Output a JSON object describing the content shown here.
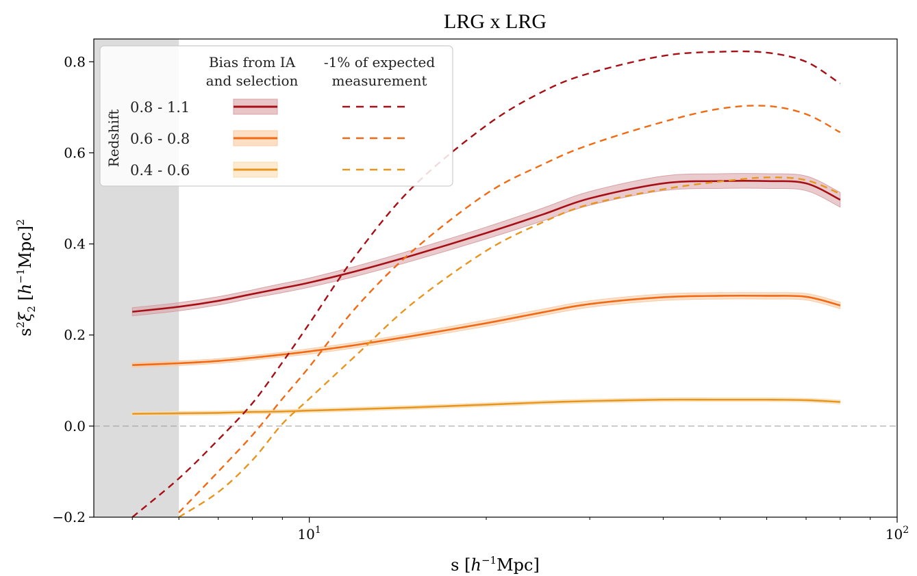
{
  "chart_data": {
    "type": "line",
    "title": "LRG x LRG",
    "xlabel_main": "s [",
    "xlabel_unit": "h",
    "xlabel_sup": "−1",
    "xlabel_end": "Mpc]",
    "ylabel_main": "s",
    "ylabel_sup1": "2",
    "ylabel_xi": "ξ",
    "ylabel_sub": "2",
    "ylabel_bracket": " [",
    "ylabel_unit": "h",
    "ylabel_sup2": "−1",
    "ylabel_end": "Mpc]",
    "ylabel_sup3": "2",
    "xscale": "log",
    "xlim": [
      4.3,
      100
    ],
    "ylim": [
      -0.2,
      0.85
    ],
    "xticks": [
      {
        "base": "10",
        "exp": "1",
        "value": 10
      },
      {
        "base": "10",
        "exp": "2",
        "value": 100
      }
    ],
    "yticks": [
      {
        "label": "−0.2",
        "value": -0.2
      },
      {
        "label": "0.0",
        "value": 0.0
      },
      {
        "label": "0.2",
        "value": 0.2
      },
      {
        "label": "0.4",
        "value": 0.4
      },
      {
        "label": "0.6",
        "value": 0.6
      },
      {
        "label": "0.8",
        "value": 0.8
      }
    ],
    "shaded_region": {
      "x_from": 4.3,
      "x_to": 6.0,
      "color": "#dcdcdc"
    },
    "zero_line": true,
    "legend": {
      "position": "top-left",
      "group_label": "Redshift",
      "col1_header_line1": "Bias from IA",
      "col1_header_line2": "and selection",
      "col2_header_line1": "-1% of expected",
      "col2_header_line2": "measurement"
    },
    "x": [
      5,
      6,
      7,
      8,
      9,
      10,
      12,
      15,
      20,
      25,
      30,
      40,
      50,
      60,
      70,
      80
    ],
    "series": [
      {
        "name": "0.8 - 1.1",
        "color": "#a50f15",
        "band_color": "#d8a0a4",
        "bias": [
          0.251,
          0.262,
          0.275,
          0.29,
          0.303,
          0.315,
          0.34,
          0.375,
          0.424,
          0.465,
          0.5,
          0.533,
          0.538,
          0.538,
          0.533,
          0.497
        ],
        "bias_err": [
          0.009,
          0.009,
          0.009,
          0.009,
          0.01,
          0.01,
          0.011,
          0.012,
          0.013,
          0.014,
          0.015,
          0.016,
          0.016,
          0.016,
          0.016,
          0.016
        ],
        "expected": [
          -0.2,
          -0.115,
          -0.03,
          0.05,
          0.14,
          0.225,
          0.375,
          0.525,
          0.66,
          0.735,
          0.775,
          0.813,
          0.822,
          0.82,
          0.8,
          0.752
        ]
      },
      {
        "name": "0.6 - 0.8",
        "color": "#f16913",
        "band_color": "#fbc9a0",
        "bias": [
          0.134,
          0.138,
          0.143,
          0.15,
          0.157,
          0.164,
          0.178,
          0.198,
          0.226,
          0.25,
          0.268,
          0.283,
          0.286,
          0.286,
          0.284,
          0.265
        ],
        "bias_err": [
          0.005,
          0.005,
          0.005,
          0.005,
          0.005,
          0.006,
          0.006,
          0.006,
          0.007,
          0.007,
          0.007,
          0.007,
          0.007,
          0.007,
          0.007,
          0.007
        ],
        "expected": [
          null,
          -0.19,
          -0.1,
          -0.02,
          0.06,
          0.13,
          0.26,
          0.385,
          0.51,
          0.575,
          0.618,
          0.668,
          0.697,
          0.703,
          0.685,
          0.645
        ]
      },
      {
        "name": "0.4 - 0.6",
        "color": "#e6961e",
        "band_color": "#fbdcb0",
        "bias": [
          0.027,
          0.028,
          0.029,
          0.031,
          0.032,
          0.034,
          0.037,
          0.041,
          0.047,
          0.052,
          0.055,
          0.058,
          0.058,
          0.058,
          0.057,
          0.053
        ],
        "bias_err": [
          0.004,
          0.004,
          0.004,
          0.004,
          0.004,
          0.004,
          0.004,
          0.004,
          0.004,
          0.004,
          0.004,
          0.004,
          0.004,
          0.004,
          0.004,
          0.004
        ],
        "expected": [
          null,
          -0.2,
          -0.145,
          -0.075,
          0.005,
          0.06,
          0.155,
          0.27,
          0.385,
          0.448,
          0.487,
          0.52,
          0.537,
          0.546,
          0.54,
          0.51
        ]
      }
    ]
  }
}
